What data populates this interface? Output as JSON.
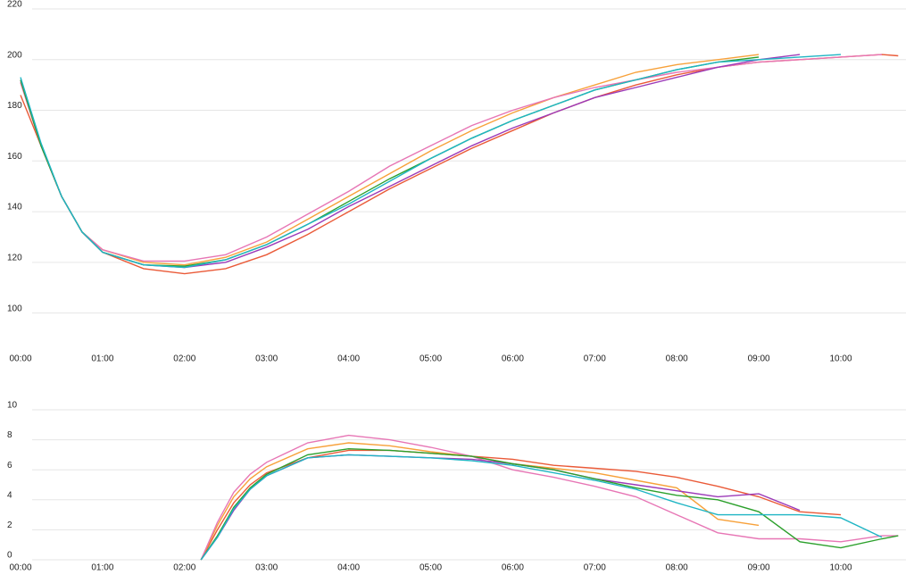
{
  "chart_data": [
    {
      "type": "line",
      "x": [
        0,
        0.25,
        0.5,
        0.75,
        1,
        1.5,
        2,
        2.5,
        3,
        3.5,
        4,
        4.5,
        5,
        5.5,
        6,
        6.5,
        7,
        7.5,
        8,
        8.5,
        9,
        9.5,
        10,
        10.5,
        10.7
      ],
      "xlim": [
        0,
        10.7
      ],
      "ylim": [
        90,
        220
      ],
      "grid": true,
      "xticks": [
        {
          "value": 0,
          "label": "00:00"
        },
        {
          "value": 1,
          "label": "01:00"
        },
        {
          "value": 2,
          "label": "02:00"
        },
        {
          "value": 3,
          "label": "03:00"
        },
        {
          "value": 4,
          "label": "04:00"
        },
        {
          "value": 5,
          "label": "05:00"
        },
        {
          "value": 6,
          "label": "06:00"
        },
        {
          "value": 7,
          "label": "07:00"
        },
        {
          "value": 8,
          "label": "08:00"
        },
        {
          "value": 9,
          "label": "09:00"
        },
        {
          "value": 10,
          "label": "10:00"
        }
      ],
      "yticks": [
        100,
        120,
        140,
        160,
        180,
        200,
        220
      ],
      "series": [
        {
          "color": "#ea5a38",
          "values": [
            186,
            166,
            146,
            132,
            124,
            117.5,
            115.5,
            117.5,
            123,
            131,
            140,
            149,
            157,
            165,
            172,
            179,
            185,
            190,
            194,
            197,
            199,
            200,
            201,
            202,
            201.5
          ]
        },
        {
          "color": "#f7a13a",
          "values": [
            191,
            166,
            146,
            132,
            125,
            120,
            119,
            122,
            128,
            137,
            146,
            155,
            164,
            172,
            179,
            185,
            190,
            195,
            198,
            200,
            202,
            null,
            null,
            null,
            null
          ]
        },
        {
          "color": "#e776b5",
          "values": [
            191,
            166,
            146,
            132,
            125,
            120.5,
            120.5,
            123,
            130,
            139,
            148,
            158,
            166,
            174,
            180,
            185,
            189,
            192,
            195,
            197,
            199,
            200,
            201,
            202,
            null
          ]
        },
        {
          "color": "#9c3ab8",
          "values": [
            192,
            166,
            146,
            132,
            124,
            119,
            118,
            120,
            126,
            133,
            142,
            150,
            158,
            166,
            173,
            179,
            185,
            189,
            193,
            197,
            200,
            202,
            null,
            null,
            null
          ]
        },
        {
          "color": "#2ca02c",
          "values": [
            192,
            166,
            146,
            132,
            124,
            119,
            118.5,
            121,
            127,
            135,
            144,
            153,
            161,
            169,
            176,
            182,
            188,
            192,
            196,
            199,
            201,
            null,
            null,
            null,
            null
          ]
        },
        {
          "color": "#1fb5c4",
          "values": [
            193,
            167,
            146,
            132,
            124,
            119,
            118,
            121,
            127,
            135,
            143,
            152,
            161,
            169,
            176,
            182,
            188,
            192,
            196,
            199,
            200,
            201,
            202,
            null,
            null
          ]
        }
      ]
    },
    {
      "type": "line",
      "x": [
        2.2,
        2.4,
        2.6,
        2.8,
        3,
        3.5,
        4,
        4.5,
        5,
        5.5,
        6,
        6.5,
        7,
        7.5,
        8,
        8.5,
        9,
        9.5,
        10,
        10.5,
        10.7
      ],
      "xlim": [
        0,
        10.7
      ],
      "ylim": [
        0,
        10
      ],
      "grid": true,
      "xticks": [
        {
          "value": 0,
          "label": "00:00"
        },
        {
          "value": 1,
          "label": "01:00"
        },
        {
          "value": 2,
          "label": "02:00"
        },
        {
          "value": 3,
          "label": "03:00"
        },
        {
          "value": 4,
          "label": "04:00"
        },
        {
          "value": 5,
          "label": "05:00"
        },
        {
          "value": 6,
          "label": "06:00"
        },
        {
          "value": 7,
          "label": "07:00"
        },
        {
          "value": 8,
          "label": "08:00"
        },
        {
          "value": 9,
          "label": "09:00"
        },
        {
          "value": 10,
          "label": "10:00"
        }
      ],
      "yticks": [
        0,
        2,
        4,
        6,
        8,
        10
      ],
      "series": [
        {
          "color": "#ea5a38",
          "values": [
            0,
            2,
            3.8,
            5,
            5.8,
            6.8,
            7.3,
            7.3,
            7.1,
            6.9,
            6.7,
            6.3,
            6.1,
            5.9,
            5.5,
            4.9,
            4.2,
            3.2,
            3.0,
            null,
            null
          ]
        },
        {
          "color": "#f7a13a",
          "values": [
            0,
            2.3,
            4.2,
            5.4,
            6.2,
            7.4,
            7.8,
            7.6,
            7.2,
            6.9,
            6.4,
            6.1,
            5.8,
            5.3,
            4.8,
            2.7,
            2.3,
            null,
            null,
            null,
            null
          ]
        },
        {
          "color": "#e776b5",
          "values": [
            0,
            2.5,
            4.5,
            5.7,
            6.5,
            7.8,
            8.3,
            8.0,
            7.5,
            6.9,
            6.0,
            5.5,
            4.9,
            4.2,
            3.0,
            1.8,
            1.4,
            1.4,
            1.2,
            1.6,
            1.6
          ]
        },
        {
          "color": "#9c3ab8",
          "values": [
            0,
            1.5,
            3.3,
            4.7,
            5.6,
            6.8,
            7.0,
            6.9,
            6.8,
            6.7,
            6.4,
            6.0,
            5.4,
            5.0,
            4.6,
            4.2,
            4.4,
            3.3,
            null,
            null,
            null
          ]
        },
        {
          "color": "#2ca02c",
          "values": [
            0,
            1.6,
            3.5,
            4.8,
            5.7,
            7.0,
            7.4,
            7.3,
            7.1,
            6.9,
            6.4,
            6.0,
            5.4,
            4.8,
            4.3,
            4.0,
            3.2,
            1.2,
            0.8,
            1.4,
            1.6
          ]
        },
        {
          "color": "#1fb5c4",
          "values": [
            0,
            1.5,
            3.4,
            4.7,
            5.6,
            6.8,
            7.0,
            6.9,
            6.8,
            6.6,
            6.3,
            5.8,
            5.3,
            4.7,
            3.8,
            3.0,
            3.0,
            3.0,
            2.8,
            1.5,
            null
          ]
        }
      ]
    }
  ]
}
